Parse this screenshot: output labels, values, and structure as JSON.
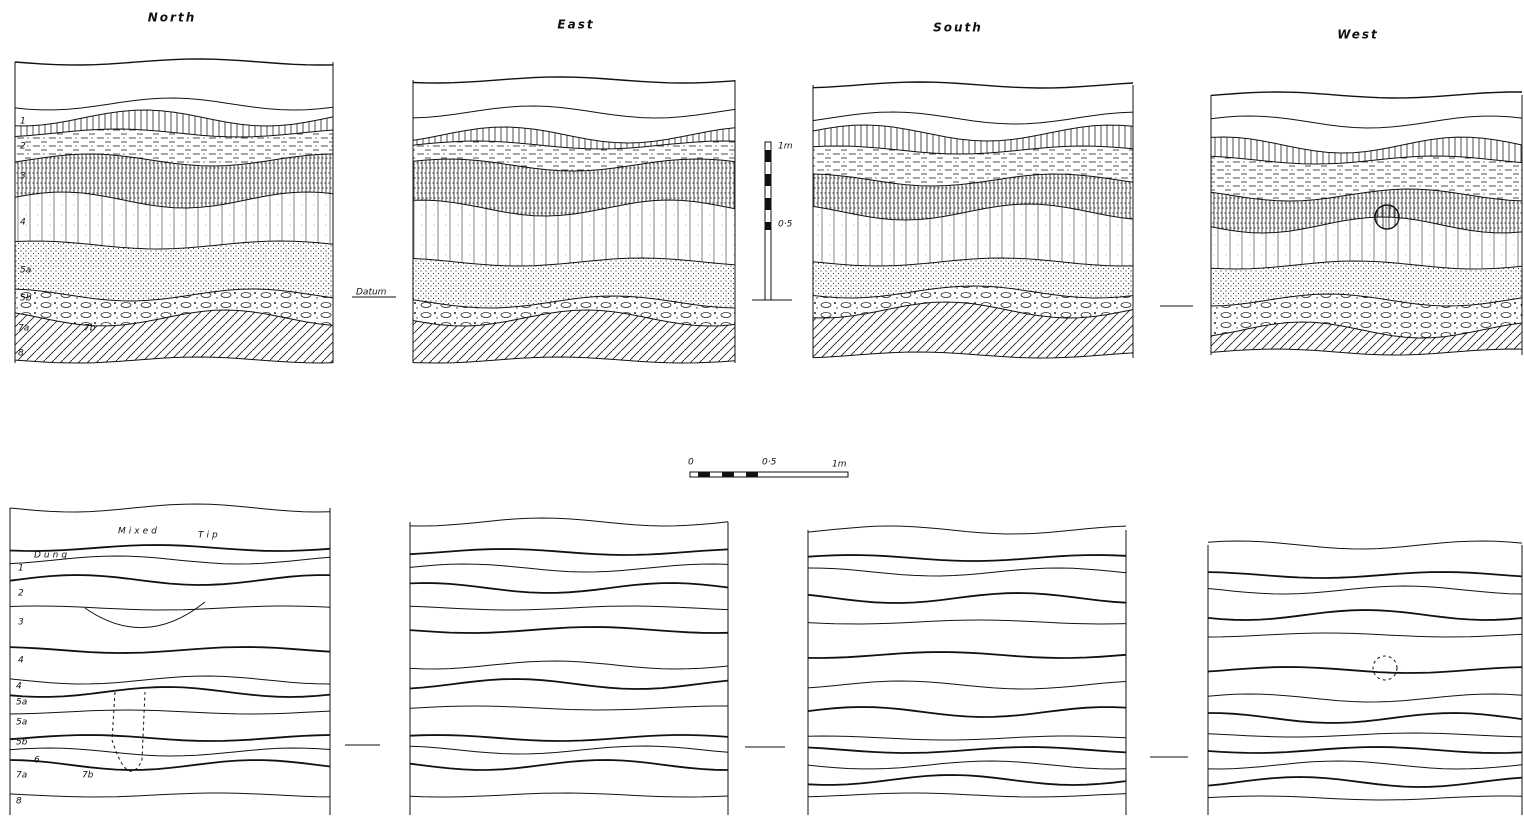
{
  "titles": [
    "North",
    "East",
    "South",
    "West"
  ],
  "upper_north_labels": [
    "1",
    "2",
    "3",
    "4",
    "5a",
    "5b",
    "7a",
    "7b",
    "8"
  ],
  "datum": "Datum",
  "vertical_scale": {
    "top": "1m",
    "mid": "0·5"
  },
  "horizontal_scale": {
    "start": "0",
    "mid": "0·5",
    "end": "1m"
  },
  "lower_north_labels": [
    "Mixed",
    "Tip",
    "Dung",
    "1",
    "2",
    "3",
    "4",
    "4",
    "5a",
    "5a",
    "5b",
    "6",
    "7a",
    "7b",
    "8"
  ]
}
